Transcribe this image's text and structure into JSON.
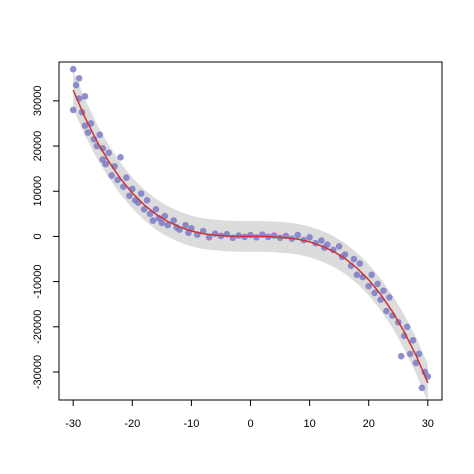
{
  "chart_data": {
    "type": "scatter",
    "x": [
      -30,
      -30,
      -29.5,
      -29,
      -29,
      -28.5,
      -28,
      -28,
      -27.5,
      -27,
      -26.5,
      -26,
      -25.5,
      -25,
      -25,
      -24.5,
      -24,
      -23.5,
      -23,
      -22.5,
      -22,
      -21.5,
      -21,
      -20.5,
      -20,
      -19.5,
      -19,
      -18.5,
      -18,
      -17.5,
      -17,
      -16.5,
      -16,
      -15.5,
      -15,
      -14.5,
      -14,
      -13,
      -12.5,
      -12,
      -11,
      -10.5,
      -10,
      -9,
      -8,
      -7,
      -6,
      -5,
      -4,
      -3,
      -2,
      -1,
      0,
      1,
      2,
      3,
      4,
      5,
      6,
      7,
      8,
      9,
      10,
      11,
      12,
      12.5,
      13,
      14,
      15,
      15.5,
      16,
      17,
      17.5,
      18,
      18.5,
      19,
      20,
      20.5,
      21,
      21.5,
      22,
      22.5,
      23,
      23.5,
      24,
      25,
      25.5,
      26,
      26.5,
      27,
      27.5,
      28,
      28.5,
      29,
      29.5,
      30
    ],
    "values": [
      37000,
      28000,
      33500,
      35000,
      30500,
      27500,
      31000,
      24500,
      23000,
      25000,
      21500,
      20000,
      22500,
      19500,
      17000,
      16000,
      18500,
      13500,
      15500,
      12500,
      17500,
      11000,
      13000,
      9000,
      10500,
      8000,
      7500,
      9500,
      6000,
      8000,
      5000,
      3500,
      6000,
      4000,
      3000,
      4500,
      2500,
      3500,
      2000,
      1500,
      2500,
      800,
      1800,
      400,
      1200,
      -200,
      600,
      100,
      500,
      -300,
      200,
      -100,
      300,
      -200,
      400,
      -100,
      200,
      -300,
      100,
      -500,
      300,
      -800,
      -200,
      -1500,
      -900,
      -2500,
      -1800,
      -3000,
      -2200,
      -4500,
      -4000,
      -6500,
      -5000,
      -8500,
      -6000,
      -9000,
      -11000,
      -8500,
      -12500,
      -10500,
      -14000,
      -12000,
      -16500,
      -13500,
      -17500,
      -19000,
      -26500,
      -22000,
      -20000,
      -26000,
      -23000,
      -28000,
      -26000,
      -33500,
      -30000,
      -31000
    ],
    "color": "#7b7bc8",
    "fit": {
      "x": [
        -30,
        -28,
        -26,
        -24,
        -22,
        -20,
        -18,
        -16,
        -14,
        -12,
        -10,
        -8,
        -6,
        -4,
        -2,
        0,
        2,
        4,
        6,
        8,
        10,
        12,
        14,
        16,
        18,
        20,
        22,
        24,
        26,
        28,
        30
      ],
      "values": [
        32400,
        26300,
        21100,
        16600,
        12800,
        9600,
        7000,
        4900,
        3300,
        2100,
        1200,
        600,
        300,
        100,
        0,
        0,
        0,
        -100,
        -300,
        -600,
        -1200,
        -2100,
        -3300,
        -4900,
        -7000,
        -9600,
        -12800,
        -16600,
        -21100,
        -26300,
        -32400
      ],
      "upper": [
        36600,
        30300,
        24900,
        20200,
        16300,
        13000,
        10400,
        8300,
        6700,
        5500,
        4600,
        4000,
        3700,
        3500,
        3400,
        3400,
        3400,
        3300,
        3100,
        2800,
        2200,
        1300,
        100,
        -1500,
        -3600,
        -6200,
        -9300,
        -13000,
        -17300,
        -22300,
        -28200
      ],
      "lower": [
        28200,
        22300,
        17300,
        13000,
        9300,
        6200,
        3600,
        1500,
        -100,
        -1300,
        -2200,
        -2800,
        -3100,
        -3300,
        -3400,
        -3400,
        -3400,
        -3500,
        -3700,
        -4000,
        -4600,
        -5500,
        -6700,
        -8300,
        -10400,
        -13000,
        -16300,
        -20200,
        -24900,
        -30300,
        -36600
      ],
      "color": "#cc3333",
      "band_color": "#dcdcdc"
    },
    "xlim": [
      -32.4,
      32.4
    ],
    "ylim": [
      -36200,
      38600
    ],
    "xticks": [
      -30,
      -20,
      -10,
      0,
      10,
      20,
      30
    ],
    "yticks": [
      -30000,
      -20000,
      -10000,
      0,
      10000,
      20000,
      30000
    ]
  }
}
